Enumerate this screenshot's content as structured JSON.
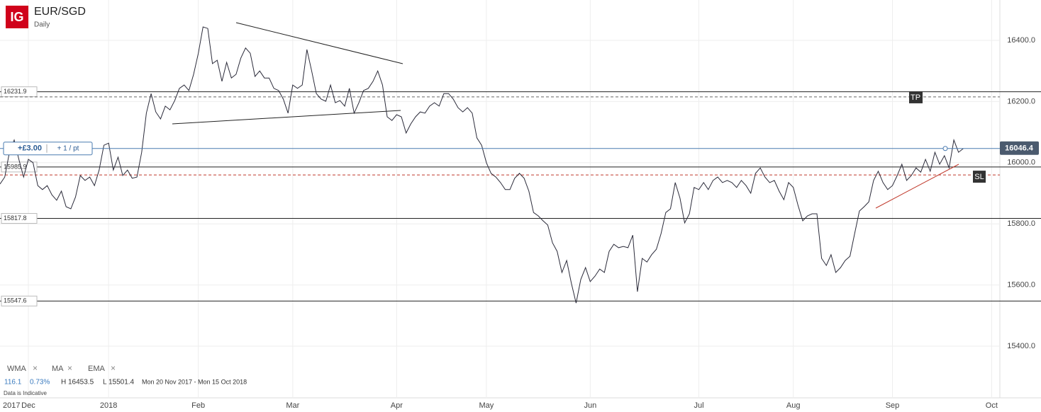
{
  "logo": "IG",
  "chart_data": {
    "type": "line",
    "title": "EUR/SGD",
    "subtitle": "Daily",
    "color": "#2b2b3a",
    "categories": [
      "2017",
      null,
      null,
      null,
      null,
      null,
      "Dec",
      null,
      null,
      null,
      null,
      null,
      null,
      null,
      null,
      null,
      null,
      null,
      null,
      null,
      null,
      null,
      null,
      "2018",
      null,
      null,
      null,
      null,
      null,
      null,
      null,
      null,
      null,
      null,
      null,
      null,
      null,
      null,
      null,
      null,
      null,
      null,
      "Feb",
      null,
      null,
      null,
      null,
      null,
      null,
      null,
      null,
      null,
      null,
      null,
      null,
      null,
      null,
      null,
      null,
      null,
      null,
      null,
      "Mar",
      null,
      null,
      null,
      null,
      null,
      null,
      null,
      null,
      null,
      null,
      null,
      null,
      null,
      null,
      null,
      null,
      null,
      null,
      null,
      null,
      null,
      "Apr",
      null,
      null,
      null,
      null,
      null,
      null,
      null,
      null,
      null,
      null,
      null,
      null,
      null,
      null,
      null,
      null,
      null,
      null,
      "May",
      null,
      null,
      null,
      null,
      null,
      null,
      null,
      null,
      null,
      null,
      null,
      null,
      null,
      null,
      null,
      null,
      null,
      null,
      null,
      null,
      null,
      "Jun",
      null,
      null,
      null,
      null,
      null,
      null,
      null,
      null,
      null,
      null,
      null,
      null,
      null,
      null,
      null,
      null,
      null,
      null,
      null,
      null,
      null,
      null,
      "Jul",
      null,
      null,
      null,
      null,
      null,
      null,
      null,
      null,
      null,
      null,
      null,
      null,
      null,
      null,
      null,
      null,
      null,
      null,
      null,
      "Aug",
      null,
      null,
      null,
      null,
      null,
      null,
      null,
      null,
      null,
      null,
      null,
      null,
      null,
      null,
      null,
      null,
      null,
      null,
      null,
      null,
      "Sep",
      null,
      null,
      null,
      null,
      null,
      null,
      null,
      null,
      null,
      null,
      null,
      null,
      null,
      null,
      null,
      null,
      null,
      null,
      null,
      null,
      "Oct",
      null
    ],
    "values": [
      15930,
      15953,
      16034,
      16074,
      16011,
      15953,
      16011,
      16000,
      15925,
      15912,
      15925,
      15895,
      15877,
      15907,
      15856,
      15849,
      15888,
      15958,
      15942,
      15953,
      15925,
      15976,
      16057,
      16064,
      15976,
      16018,
      15958,
      15976,
      15949,
      15953,
      16034,
      16162,
      16226,
      16166,
      16143,
      16185,
      16173,
      16203,
      16243,
      16254,
      16236,
      16289,
      16358,
      16444,
      16439,
      16324,
      16335,
      16266,
      16328,
      16277,
      16289,
      16342,
      16375,
      16358,
      16282,
      16300,
      16277,
      16277,
      16243,
      16236,
      16208,
      16162,
      16254,
      16243,
      16254,
      16370,
      16300,
      16226,
      16208,
      16201,
      16254,
      16196,
      16203,
      16185,
      16243,
      16162,
      16196,
      16236,
      16243,
      16266,
      16300,
      16254,
      16150,
      16138,
      16157,
      16150,
      16097,
      16127,
      16150,
      16166,
      16162,
      16185,
      16196,
      16185,
      16226,
      16226,
      16208,
      16180,
      16166,
      16180,
      16162,
      16081,
      16057,
      16000,
      15965,
      15953,
      15935,
      15912,
      15912,
      15949,
      15965,
      15949,
      15907,
      15837,
      15826,
      15810,
      15796,
      15738,
      15710,
      15641,
      15680,
      15606,
      15541,
      15618,
      15657,
      15611,
      15629,
      15652,
      15641,
      15710,
      15733,
      15722,
      15726,
      15722,
      15763,
      15578,
      15687,
      15675,
      15699,
      15717,
      15768,
      15837,
      15849,
      15935,
      15884,
      15803,
      15833,
      15919,
      15912,
      15935,
      15912,
      15942,
      15953,
      15935,
      15942,
      15935,
      15919,
      15942,
      15925,
      15900,
      15965,
      15983,
      15953,
      15935,
      15942,
      15907,
      15879,
      15935,
      15919,
      15861,
      15810,
      15826,
      15833,
      15833,
      15687,
      15664,
      15699,
      15641,
      15657,
      15680,
      15694,
      15768,
      15842,
      15856,
      15872,
      15942,
      15972,
      15935,
      15912,
      15925,
      15958,
      15995,
      15942,
      15958,
      15983,
      15969,
      16011,
      15972,
      16034,
      15995,
      16023,
      15983,
      16074,
      16034,
      16046,
      null,
      null,
      null,
      null,
      null,
      null,
      null
    ],
    "ylim": [
      15231,
      16532
    ],
    "yticks": [
      {
        "value": 16400,
        "label": "16400.0"
      },
      {
        "value": 16200,
        "label": "16200.0"
      },
      {
        "value": 16000,
        "label": "16000.0"
      },
      {
        "value": 15800,
        "label": "15800.0"
      },
      {
        "value": 15600,
        "label": "15600.0"
      },
      {
        "value": 15400,
        "label": "15400.0"
      }
    ],
    "grid": true,
    "levels": [
      16231.9,
      15985.9,
      15817.8,
      15547.6
    ],
    "position": {
      "price": 16046.4,
      "profit": "+£3.00",
      "size": "+ 1 / pt"
    },
    "take_profit": {
      "value": 16215,
      "label": "TP"
    },
    "stop_loss": {
      "value": 15960,
      "label": "SL"
    },
    "indicators": [
      "WMA",
      "MA",
      "EMA"
    ],
    "stats": {
      "change": "116.1",
      "change_pct": "0.73%",
      "high": "H 16453.5",
      "low": "L 15501.4",
      "range": "Mon 20 Nov 2017 - Mon 15 Oct 2018",
      "note": "Data is Indicative"
    }
  }
}
